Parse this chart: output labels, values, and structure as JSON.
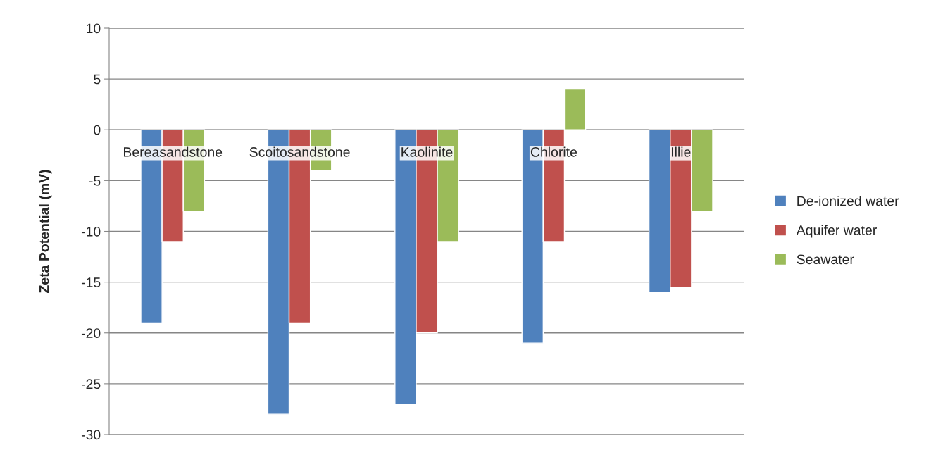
{
  "chart_data": {
    "type": "bar",
    "ylabel": "Zeta Potential (mV)",
    "categories": [
      "Bereasandstone",
      "Scoitosandstone",
      "Kaolinite",
      "Chlorite",
      "Illie"
    ],
    "series": [
      {
        "name": "De-ionized water",
        "color": "#4f81bd",
        "values": [
          -19,
          -28,
          -27,
          -21,
          -16
        ]
      },
      {
        "name": "Aquifer water",
        "color": "#c0504d",
        "values": [
          -11,
          -19,
          -20,
          -11,
          -15.5
        ]
      },
      {
        "name": "Seawater",
        "color": "#9bbb59",
        "values": [
          -8,
          -4,
          -11,
          4,
          -8
        ]
      }
    ],
    "ylim": [
      -30,
      10
    ],
    "yticks": [
      -30,
      -25,
      -20,
      -15,
      -10,
      -5,
      0,
      5,
      10
    ],
    "grid": "y",
    "legend": "right"
  }
}
